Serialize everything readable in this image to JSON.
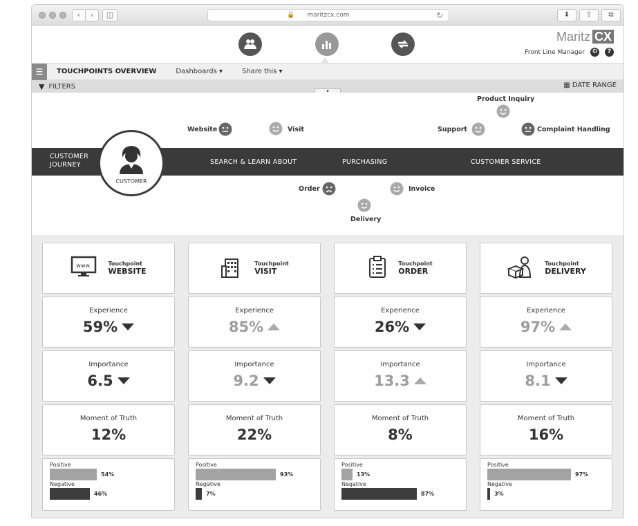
{
  "browser": {
    "url": "maritzcx.com"
  },
  "brand": {
    "name": "Maritz",
    "badge": "CX"
  },
  "user": {
    "role": "Front Line Manager"
  },
  "toolbar": {
    "title": "TOUCHPOINTS OVERVIEW",
    "dashboards": "Dashboards ▾",
    "share": "Share this ▾"
  },
  "filters": {
    "label": "FILTERS",
    "date_range": "DATE RANGE"
  },
  "journey": {
    "band_left": "CUSTOMER\nJOURNEY",
    "customer": "CUSTOMER",
    "stages": [
      "SEARCH & LEARN ABOUT",
      "PURCHASING",
      "CUSTOMER SERVICE"
    ],
    "touchpoints": {
      "website": "Website",
      "visit": "Visit",
      "product_inquiry": "Product Inquiry",
      "support": "Support",
      "complaint": "Complaint Handling",
      "order": "Order",
      "invoice": "Invoice",
      "delivery": "Delivery"
    }
  },
  "cards": [
    {
      "tp_label": "Touchpoint",
      "tp_name": "WEBSITE",
      "experience": "59%",
      "exp_trend": "down",
      "exp_style": "dark",
      "importance": "6.5",
      "imp_trend": "down",
      "imp_style": "dark",
      "mot": "12%",
      "positive": 54,
      "negative": 46,
      "pos_label": "54%",
      "neg_label": "46%"
    },
    {
      "tp_label": "Touchpoint",
      "tp_name": "VISIT",
      "experience": "85%",
      "exp_trend": "up",
      "exp_style": "light",
      "importance": "9.2",
      "imp_trend": "down",
      "imp_style": "light",
      "mot": "22%",
      "positive": 93,
      "negative": 7,
      "pos_label": "93%",
      "neg_label": "7%"
    },
    {
      "tp_label": "Touchpoint",
      "tp_name": "ORDER",
      "experience": "26%",
      "exp_trend": "down",
      "exp_style": "dark",
      "importance": "13.3",
      "imp_trend": "up",
      "imp_style": "light",
      "mot": "8%",
      "positive": 13,
      "negative": 87,
      "pos_label": "13%",
      "neg_label": "87%"
    },
    {
      "tp_label": "Touchpoint",
      "tp_name": "DELIVERY",
      "experience": "97%",
      "exp_trend": "up",
      "exp_style": "light",
      "importance": "8.1",
      "imp_trend": "down",
      "imp_style": "light",
      "mot": "16%",
      "positive": 97,
      "negative": 3,
      "pos_label": "97%",
      "neg_label": "3%"
    }
  ],
  "labels": {
    "experience": "Experience",
    "importance": "Importance",
    "mot": "Moment of Truth",
    "positive": "Positive",
    "negative": "Negative"
  }
}
